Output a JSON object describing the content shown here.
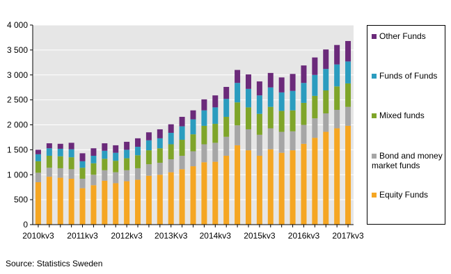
{
  "chart_data": {
    "type": "bar",
    "stacked": true,
    "categories": [
      "2010kv3",
      null,
      null,
      null,
      "2011kv3",
      null,
      null,
      null,
      "2012kv3",
      null,
      null,
      null,
      "2013Kv3",
      null,
      null,
      null,
      "2014kv3",
      null,
      null,
      null,
      "2015kv3",
      null,
      null,
      null,
      "2016kv3",
      null,
      null,
      null,
      "2017kv3"
    ],
    "series": [
      {
        "name": "Equity Funds",
        "color": "#f5a623",
        "values": [
          850,
          960,
          940,
          920,
          730,
          790,
          880,
          830,
          870,
          900,
          980,
          1000,
          1050,
          1110,
          1170,
          1250,
          1260,
          1380,
          1590,
          1490,
          1380,
          1510,
          1440,
          1490,
          1620,
          1740,
          1860,
          1930,
          1980
        ]
      },
      {
        "name": "Bond and money market funds",
        "color": "#a6a6a6",
        "values": [
          190,
          180,
          190,
          190,
          190,
          210,
          210,
          220,
          220,
          230,
          230,
          240,
          260,
          270,
          300,
          360,
          380,
          380,
          400,
          420,
          420,
          420,
          420,
          380,
          380,
          390,
          370,
          370,
          380
        ]
      },
      {
        "name": "Mixed funds",
        "color": "#7fa52a",
        "values": [
          230,
          240,
          240,
          240,
          220,
          230,
          230,
          230,
          240,
          260,
          280,
          290,
          300,
          320,
          340,
          370,
          380,
          400,
          460,
          440,
          420,
          430,
          420,
          420,
          440,
          450,
          460,
          470,
          470
        ]
      },
      {
        "name": "Funds of Funds",
        "color": "#2b9cbf",
        "values": [
          140,
          150,
          150,
          160,
          130,
          150,
          160,
          160,
          170,
          170,
          200,
          200,
          230,
          270,
          300,
          310,
          330,
          360,
          390,
          370,
          370,
          390,
          370,
          390,
          400,
          420,
          430,
          440,
          440
        ]
      },
      {
        "name": "Other Funds",
        "color": "#6b2a7a",
        "values": [
          90,
          100,
          100,
          130,
          160,
          150,
          150,
          150,
          160,
          170,
          160,
          180,
          170,
          190,
          180,
          220,
          240,
          240,
          260,
          290,
          280,
          290,
          300,
          340,
          350,
          350,
          390,
          390,
          410
        ]
      }
    ],
    "ylim": [
      0,
      4000
    ],
    "yticks": [
      0,
      500,
      {
        "value": 1000,
        "label": "1 000"
      },
      {
        "value": 1500,
        "label": "1 500"
      },
      {
        "value": 2000,
        "label": "2 000"
      },
      {
        "value": 2500,
        "label": "2 500"
      },
      {
        "value": 3000,
        "label": "3 000"
      },
      {
        "value": 3500,
        "label": "3 500"
      },
      {
        "value": 4000,
        "label": "4 000"
      }
    ],
    "grid": true,
    "legend": "right",
    "source": "Source: Statistics Sweden"
  }
}
